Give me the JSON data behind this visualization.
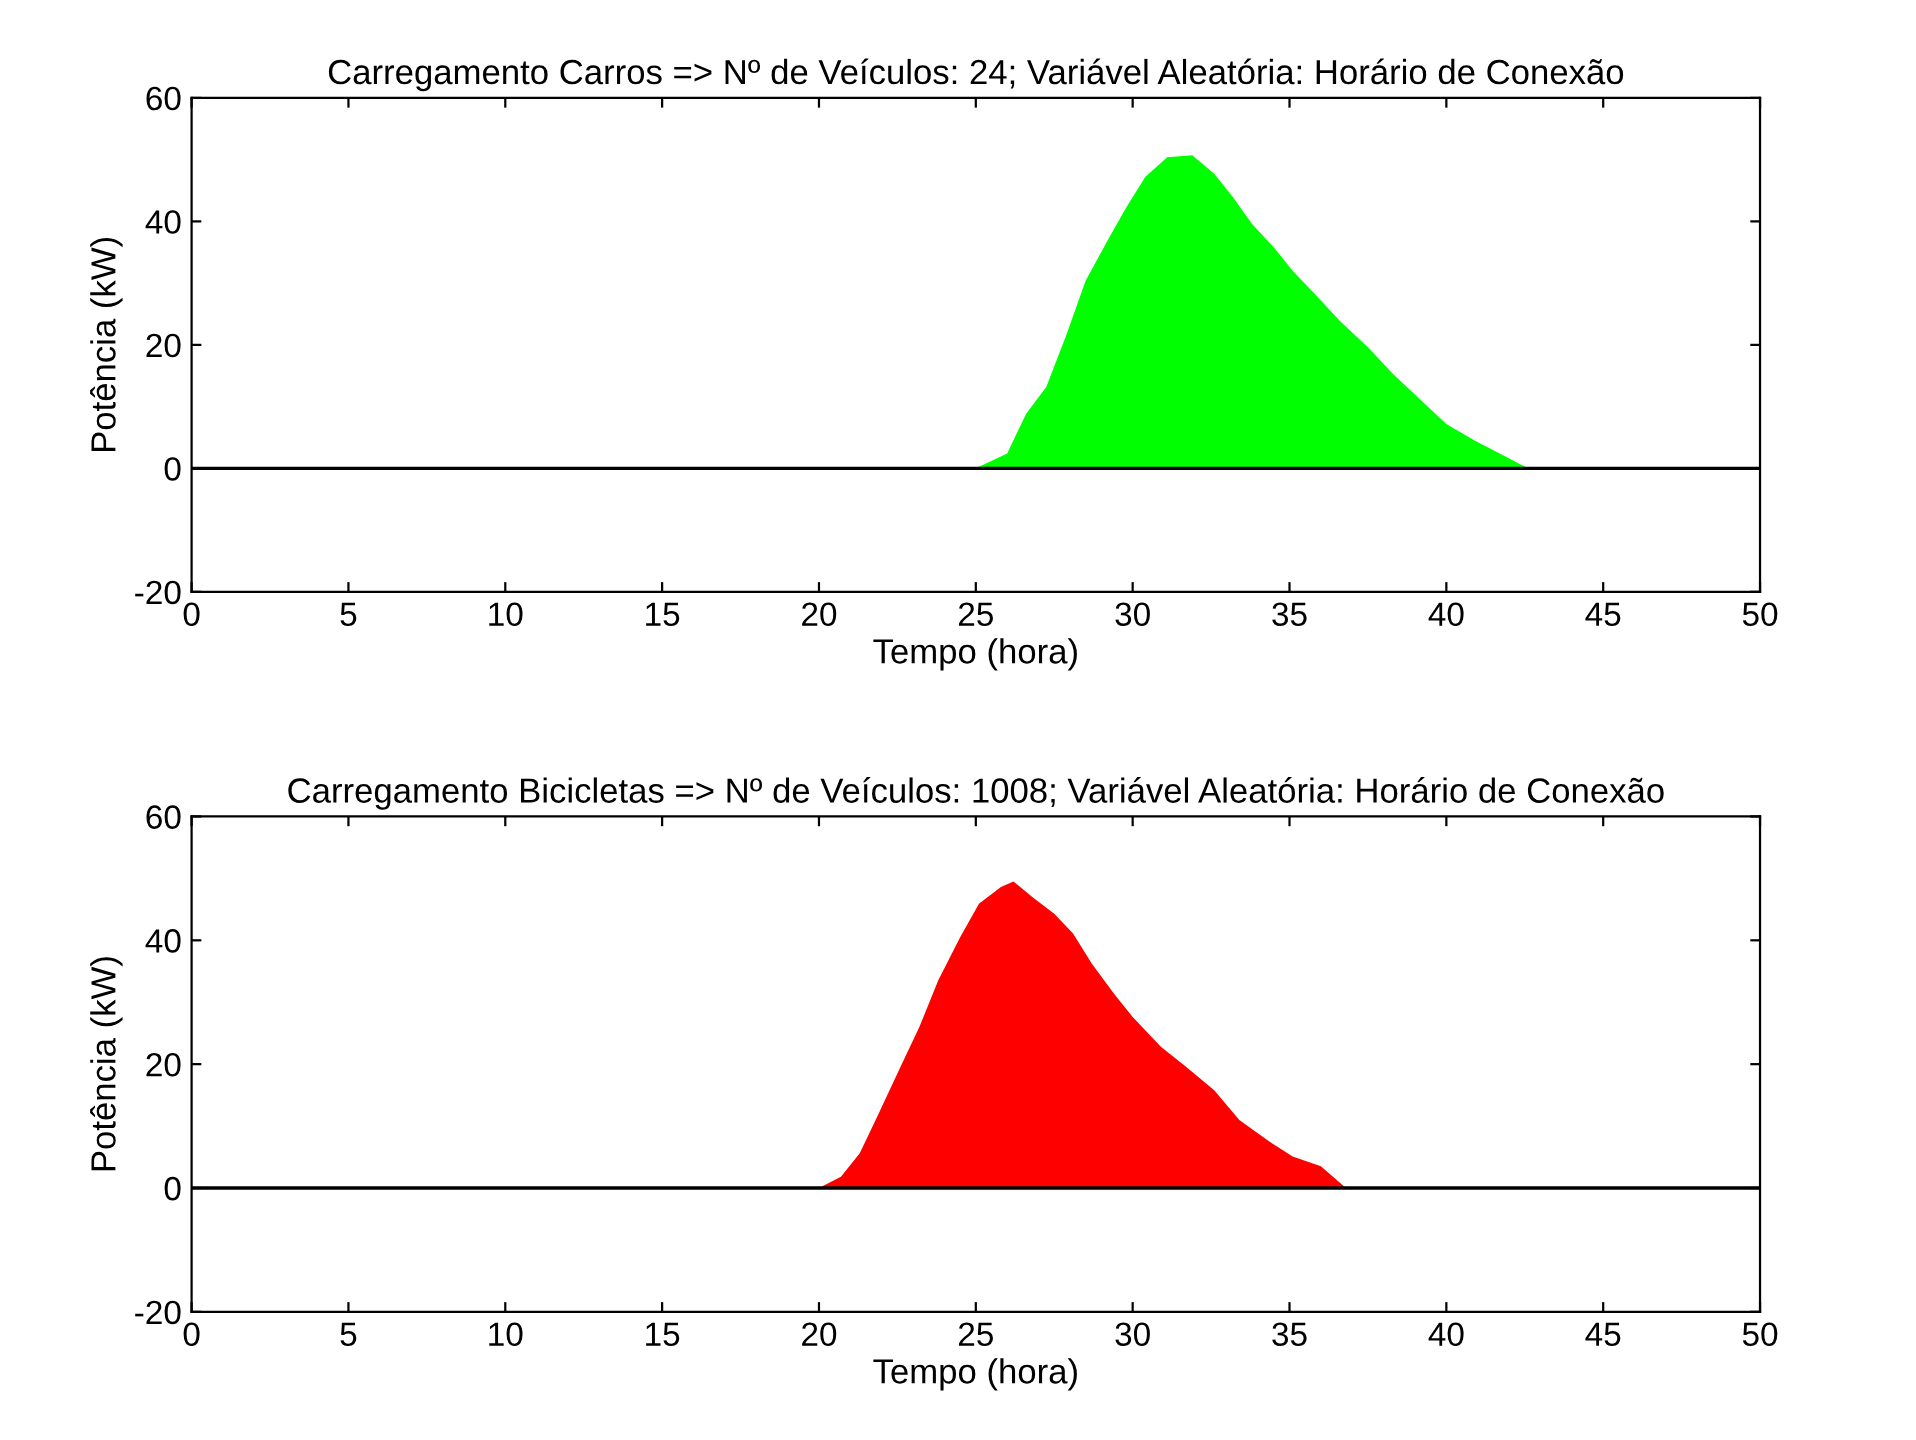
{
  "chart_data": [
    {
      "type": "area",
      "title": "Carregamento Carros => Nº de Veículos: 24; Variável Aleatória: Horário de Conexão",
      "xlabel": "Tempo (hora)",
      "ylabel": "Potência (kW)",
      "xlim": [
        0,
        50
      ],
      "ylim": [
        -20,
        60
      ],
      "xticks": [
        0,
        5,
        10,
        15,
        20,
        25,
        30,
        35,
        40,
        45,
        50
      ],
      "yticks": [
        -20,
        0,
        20,
        40,
        60
      ],
      "grid": false,
      "legend": false,
      "ref_lines": [
        {
          "axis": "y",
          "value": 0,
          "color": "#000000"
        }
      ],
      "series": [
        {
          "color": "#00ff00",
          "x": [
            25.0,
            26.0,
            26.6,
            27.25,
            27.9,
            28.5,
            29.2,
            29.8,
            30.4,
            31.1,
            31.9,
            32.6,
            33.2,
            33.8,
            34.5,
            35.1,
            35.8,
            36.6,
            37.5,
            38.3,
            39.2,
            40.0,
            40.9,
            41.7,
            42.6
          ],
          "values": [
            0,
            2.4,
            8.8,
            13.2,
            21.8,
            30.4,
            36.9,
            42.3,
            47.2,
            50.4,
            50.7,
            47.7,
            43.9,
            39.6,
            35.8,
            32.0,
            28.3,
            23.9,
            19.6,
            15.3,
            11.0,
            7.2,
            4.5,
            2.4,
            0
          ]
        }
      ]
    },
    {
      "type": "area",
      "title": "Carregamento Bicicletas => Nº de Veículos: 1008; Variável Aleatória: Horário de Conexão",
      "xlabel": "Tempo (hora)",
      "ylabel": "Potência (kW)",
      "xlim": [
        0,
        50
      ],
      "ylim": [
        -20,
        60
      ],
      "xticks": [
        0,
        5,
        10,
        15,
        20,
        25,
        30,
        35,
        40,
        45,
        50
      ],
      "yticks": [
        -20,
        0,
        20,
        40,
        60
      ],
      "grid": false,
      "legend": false,
      "ref_lines": [
        {
          "axis": "y",
          "value": 0,
          "color": "#000000"
        }
      ],
      "series": [
        {
          "color": "#ff0000",
          "x": [
            20.0,
            20.7,
            21.3,
            21.9,
            22.6,
            23.2,
            23.8,
            24.5,
            25.1,
            25.8,
            26.2,
            26.8,
            27.5,
            28.1,
            28.7,
            29.4,
            30.0,
            30.9,
            31.7,
            32.6,
            33.4,
            34.3,
            35.1,
            36.0,
            36.8
          ],
          "values": [
            0,
            1.8,
            5.6,
            12.0,
            19.6,
            26.0,
            33.5,
            40.5,
            45.9,
            48.6,
            49.5,
            47.0,
            44.3,
            41.1,
            36.2,
            31.4,
            27.6,
            22.8,
            19.6,
            15.8,
            11.0,
            7.7,
            5.1,
            3.5,
            0
          ]
        }
      ]
    }
  ]
}
